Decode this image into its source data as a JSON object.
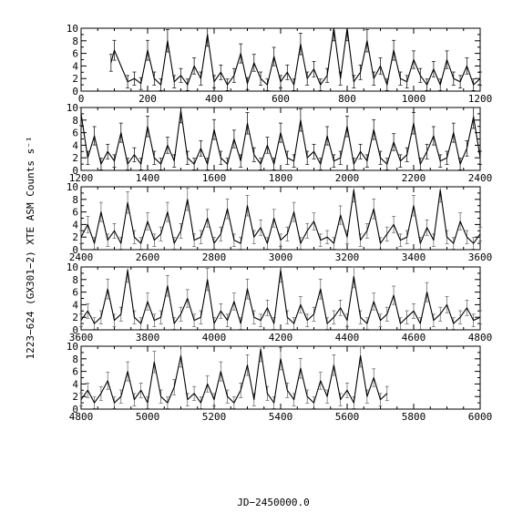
{
  "chart_data": {
    "type": "line",
    "xlabel": "JD−2450000.0",
    "ylabel": "1223−624 (GX301−2) XTE ASM Counts s⁻¹",
    "grid": false,
    "legend": "none",
    "series_note_count": 0,
    "panels": [
      {
        "xlim": [
          0,
          1200
        ],
        "ylim": [
          0,
          10
        ],
        "xticks": [
          "0",
          "200",
          "400",
          "600",
          "800",
          "1000",
          "1200"
        ],
        "yticks": [
          "0",
          "2",
          "4",
          "6",
          "8",
          "10"
        ],
        "x": [
          90,
          100,
          140,
          160,
          180,
          200,
          220,
          240,
          260,
          280,
          300,
          320,
          340,
          360,
          380,
          400,
          420,
          440,
          460,
          480,
          500,
          520,
          540,
          560,
          580,
          600,
          620,
          640,
          660,
          680,
          700,
          720,
          740,
          760,
          780,
          800,
          820,
          840,
          860,
          880,
          900,
          920,
          940,
          960,
          980,
          1000,
          1020,
          1040,
          1060,
          1080,
          1100,
          1120,
          1140,
          1160,
          1180,
          1200
        ],
        "y": [
          4.5,
          6.5,
          1.5,
          2.0,
          1.2,
          6.5,
          2.0,
          1.0,
          8.0,
          1.5,
          2.5,
          1.0,
          4.0,
          2.0,
          9.0,
          1.5,
          3.0,
          1.0,
          2.5,
          6.0,
          1.2,
          4.5,
          2.0,
          1.0,
          5.5,
          1.5,
          3.0,
          1.0,
          7.5,
          2.0,
          3.5,
          1.0,
          2.5,
          10.0,
          2.0,
          10.0,
          1.5,
          3.0,
          8.0,
          2.0,
          4.0,
          1.0,
          6.5,
          2.0,
          1.5,
          5.0,
          2.5,
          1.0,
          3.5,
          1.0,
          5.0,
          2.0,
          1.5,
          4.0,
          1.0,
          2.0
        ]
      },
      {
        "xlim": [
          1200,
          2400
        ],
        "ylim": [
          0,
          10
        ],
        "xticks": [
          "1200",
          "1400",
          "1600",
          "1800",
          "2000",
          "2200",
          "2400"
        ],
        "yticks": [
          "0",
          "2",
          "4",
          "6",
          "8",
          "10"
        ],
        "x": [
          1200,
          1220,
          1240,
          1260,
          1280,
          1300,
          1320,
          1340,
          1360,
          1380,
          1400,
          1420,
          1440,
          1460,
          1480,
          1500,
          1520,
          1540,
          1560,
          1580,
          1600,
          1620,
          1640,
          1660,
          1680,
          1700,
          1720,
          1740,
          1760,
          1780,
          1800,
          1820,
          1840,
          1860,
          1880,
          1900,
          1920,
          1940,
          1960,
          1980,
          2000,
          2020,
          2040,
          2060,
          2080,
          2100,
          2120,
          2140,
          2160,
          2180,
          2200,
          2220,
          2240,
          2260,
          2280,
          2300,
          2320,
          2340,
          2360,
          2380,
          2400
        ],
        "y": [
          9.0,
          2.0,
          5.5,
          1.0,
          3.0,
          1.5,
          6.0,
          1.0,
          2.5,
          1.0,
          7.0,
          2.0,
          1.0,
          4.0,
          1.5,
          9.5,
          2.0,
          1.0,
          3.5,
          1.0,
          6.5,
          2.0,
          1.0,
          5.0,
          1.5,
          7.5,
          2.5,
          1.0,
          4.0,
          1.0,
          6.0,
          2.0,
          1.5,
          8.0,
          2.0,
          3.0,
          1.0,
          5.5,
          1.5,
          2.0,
          7.0,
          1.0,
          3.0,
          1.5,
          6.5,
          2.0,
          1.0,
          4.5,
          1.5,
          2.5,
          7.5,
          1.0,
          3.0,
          5.5,
          1.5,
          2.0,
          6.0,
          1.0,
          3.5,
          8.5,
          2.0
        ]
      },
      {
        "xlim": [
          2400,
          3600
        ],
        "ylim": [
          0,
          10
        ],
        "xticks": [
          "2400",
          "2600",
          "2800",
          "3000",
          "3200",
          "3400",
          "3600"
        ],
        "yticks": [
          "0",
          "2",
          "4",
          "6",
          "8",
          "10"
        ],
        "x": [
          2400,
          2420,
          2440,
          2460,
          2480,
          2500,
          2520,
          2540,
          2560,
          2580,
          2600,
          2620,
          2640,
          2660,
          2680,
          2700,
          2720,
          2740,
          2760,
          2780,
          2800,
          2820,
          2840,
          2860,
          2880,
          2900,
          2920,
          2940,
          2960,
          2980,
          3000,
          3020,
          3040,
          3060,
          3080,
          3100,
          3120,
          3140,
          3160,
          3180,
          3200,
          3220,
          3240,
          3260,
          3280,
          3300,
          3320,
          3340,
          3360,
          3380,
          3400,
          3420,
          3440,
          3460,
          3480,
          3500,
          3520,
          3540,
          3560,
          3580,
          3600
        ],
        "y": [
          2.0,
          4.0,
          1.0,
          6.0,
          1.5,
          3.0,
          1.0,
          7.5,
          2.0,
          1.0,
          4.5,
          1.5,
          2.5,
          6.0,
          1.0,
          3.0,
          8.0,
          1.5,
          2.0,
          5.0,
          1.0,
          2.5,
          6.5,
          1.5,
          1.0,
          7.0,
          2.0,
          3.5,
          1.0,
          5.0,
          1.5,
          2.5,
          6.0,
          1.0,
          3.0,
          4.5,
          1.5,
          2.0,
          1.0,
          5.5,
          2.0,
          9.5,
          1.5,
          3.0,
          6.5,
          1.0,
          2.5,
          4.0,
          1.5,
          2.0,
          7.0,
          1.0,
          3.5,
          1.5,
          9.5,
          2.0,
          1.0,
          4.5,
          2.0,
          1.0,
          2.5
        ]
      },
      {
        "xlim": [
          3600,
          4800
        ],
        "ylim": [
          0,
          10
        ],
        "xticks": [
          "3600",
          "3800",
          "4000",
          "4200",
          "4400",
          "4600",
          "4800"
        ],
        "yticks": [
          "0",
          "2",
          "4",
          "6",
          "8",
          "10"
        ],
        "x": [
          3600,
          3620,
          3640,
          3660,
          3680,
          3700,
          3720,
          3740,
          3760,
          3780,
          3800,
          3820,
          3840,
          3860,
          3880,
          3900,
          3920,
          3940,
          3960,
          3980,
          4000,
          4020,
          4040,
          4060,
          4080,
          4100,
          4120,
          4140,
          4160,
          4180,
          4200,
          4220,
          4240,
          4260,
          4280,
          4300,
          4320,
          4340,
          4360,
          4380,
          4400,
          4420,
          4440,
          4460,
          4480,
          4500,
          4520,
          4540,
          4560,
          4580,
          4600,
          4620,
          4640,
          4660,
          4680,
          4700,
          4720,
          4740,
          4760,
          4780,
          4800
        ],
        "y": [
          1.5,
          3.0,
          1.0,
          2.0,
          6.5,
          1.5,
          2.5,
          9.5,
          2.0,
          1.0,
          4.5,
          1.5,
          2.0,
          7.0,
          1.0,
          2.5,
          5.0,
          1.5,
          2.0,
          8.0,
          1.0,
          3.0,
          1.5,
          4.5,
          1.0,
          6.5,
          2.0,
          1.5,
          3.5,
          1.0,
          9.5,
          2.0,
          1.0,
          4.0,
          1.5,
          2.5,
          6.5,
          1.0,
          2.0,
          3.5,
          1.5,
          8.5,
          2.0,
          1.0,
          4.5,
          1.5,
          2.5,
          5.5,
          1.0,
          2.0,
          3.0,
          1.0,
          6.0,
          1.5,
          2.5,
          4.0,
          1.0,
          2.0,
          3.5,
          1.5,
          2.0
        ]
      },
      {
        "xlim": [
          4800,
          6000
        ],
        "ylim": [
          0,
          10
        ],
        "xticks": [
          "4800",
          "5000",
          "5200",
          "5400",
          "5600",
          "5800",
          "6000"
        ],
        "yticks": [
          "0",
          "2",
          "4",
          "6",
          "8",
          "10"
        ],
        "x": [
          4800,
          4820,
          4840,
          4860,
          4880,
          4900,
          4920,
          4940,
          4960,
          4980,
          5000,
          5020,
          5040,
          5060,
          5080,
          5100,
          5120,
          5140,
          5160,
          5180,
          5200,
          5220,
          5240,
          5260,
          5280,
          5300,
          5320,
          5340,
          5360,
          5380,
          5400,
          5420,
          5440,
          5460,
          5480,
          5500,
          5520,
          5540,
          5560,
          5580,
          5600,
          5620,
          5640,
          5660,
          5680,
          5700,
          5720
        ],
        "y": [
          1.5,
          3.0,
          1.0,
          2.5,
          4.5,
          1.0,
          2.0,
          6.0,
          1.5,
          3.0,
          1.0,
          7.5,
          2.0,
          1.0,
          3.5,
          8.5,
          1.5,
          2.5,
          1.0,
          4.0,
          1.5,
          6.0,
          2.0,
          1.0,
          3.0,
          7.0,
          1.5,
          9.5,
          2.5,
          1.0,
          8.0,
          3.0,
          1.5,
          6.5,
          2.0,
          1.0,
          4.5,
          2.0,
          7.0,
          1.5,
          3.0,
          1.0,
          8.5,
          2.0,
          5.0,
          1.5,
          2.5
        ]
      }
    ]
  }
}
